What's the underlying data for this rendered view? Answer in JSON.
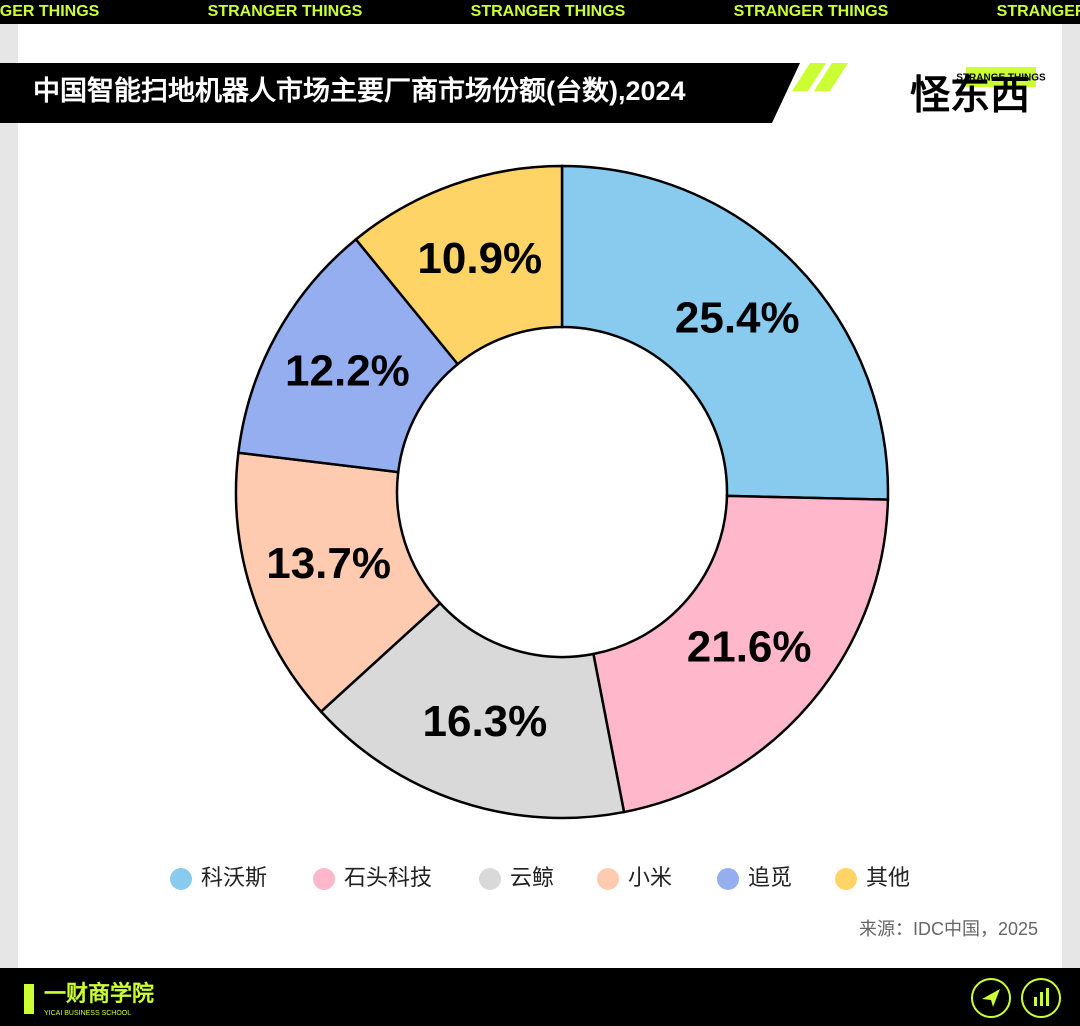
{
  "header": {
    "ticker": "STRANGER THINGS",
    "brand_small": "STRANGE THINGS",
    "brand": "怪东西"
  },
  "chart_data": {
    "type": "donut",
    "title": "中国智能扫地机器人市场主要厂商市场份额(台数),2024",
    "categories": [
      "科沃斯",
      "石头科技",
      "云鲸",
      "小米",
      "追觅",
      "其他"
    ],
    "values": [
      25.4,
      21.6,
      16.3,
      13.7,
      12.2,
      10.9
    ],
    "value_labels": [
      "25.4%",
      "21.6%",
      "16.3%",
      "13.7%",
      "12.2%",
      "10.9%"
    ],
    "colors": [
      "#89cbee",
      "#ffb7cc",
      "#d9d9d9",
      "#ffcbb0",
      "#95aef0",
      "#ffd466"
    ],
    "source": "来源：IDC中国，2025",
    "legend": "bottom"
  },
  "footer": {
    "brand": "一财商学院",
    "brand_en": "YICAI BUSINESS SCHOOL"
  }
}
